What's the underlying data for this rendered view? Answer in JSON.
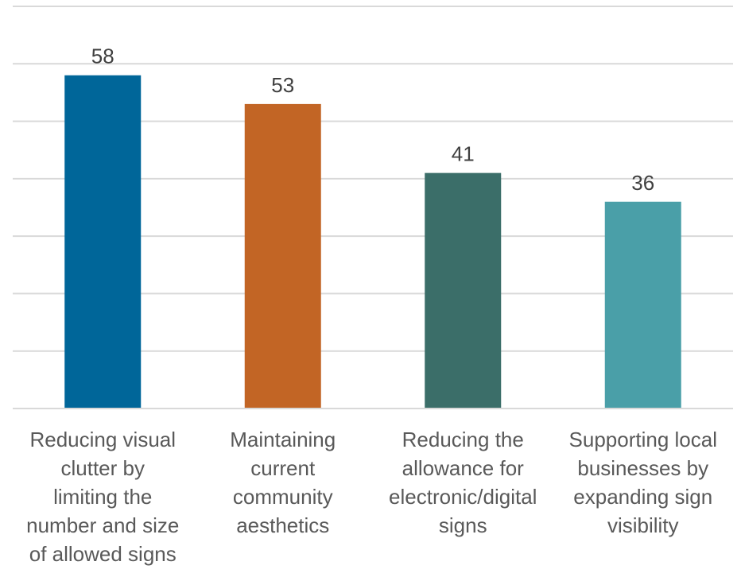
{
  "chart_data": {
    "type": "bar",
    "categories": [
      "Reducing visual clutter by limiting the number and size of allowed signs",
      "Maintaining current community aesthetics",
      "Reducing the allowance for electronic/digital signs",
      "Supporting local businesses by expanding sign visibility"
    ],
    "category_label_lines": [
      [
        "Reducing visual",
        "clutter by",
        "limiting the",
        "number and size",
        "of allowed signs"
      ],
      [
        "Maintaining",
        "current",
        "community",
        "aesthetics"
      ],
      [
        "Reducing the",
        "allowance for",
        "electronic/digital",
        "signs"
      ],
      [
        "Supporting local",
        "businesses by",
        "expanding sign",
        "visibility"
      ]
    ],
    "values": [
      58,
      53,
      41,
      36
    ],
    "colors": [
      "#006699",
      "#C26525",
      "#3B6E69",
      "#4A9FA8"
    ],
    "title": "",
    "xlabel": "",
    "ylabel": "",
    "ylim": [
      0,
      70
    ],
    "grid": true,
    "legend": "none"
  }
}
